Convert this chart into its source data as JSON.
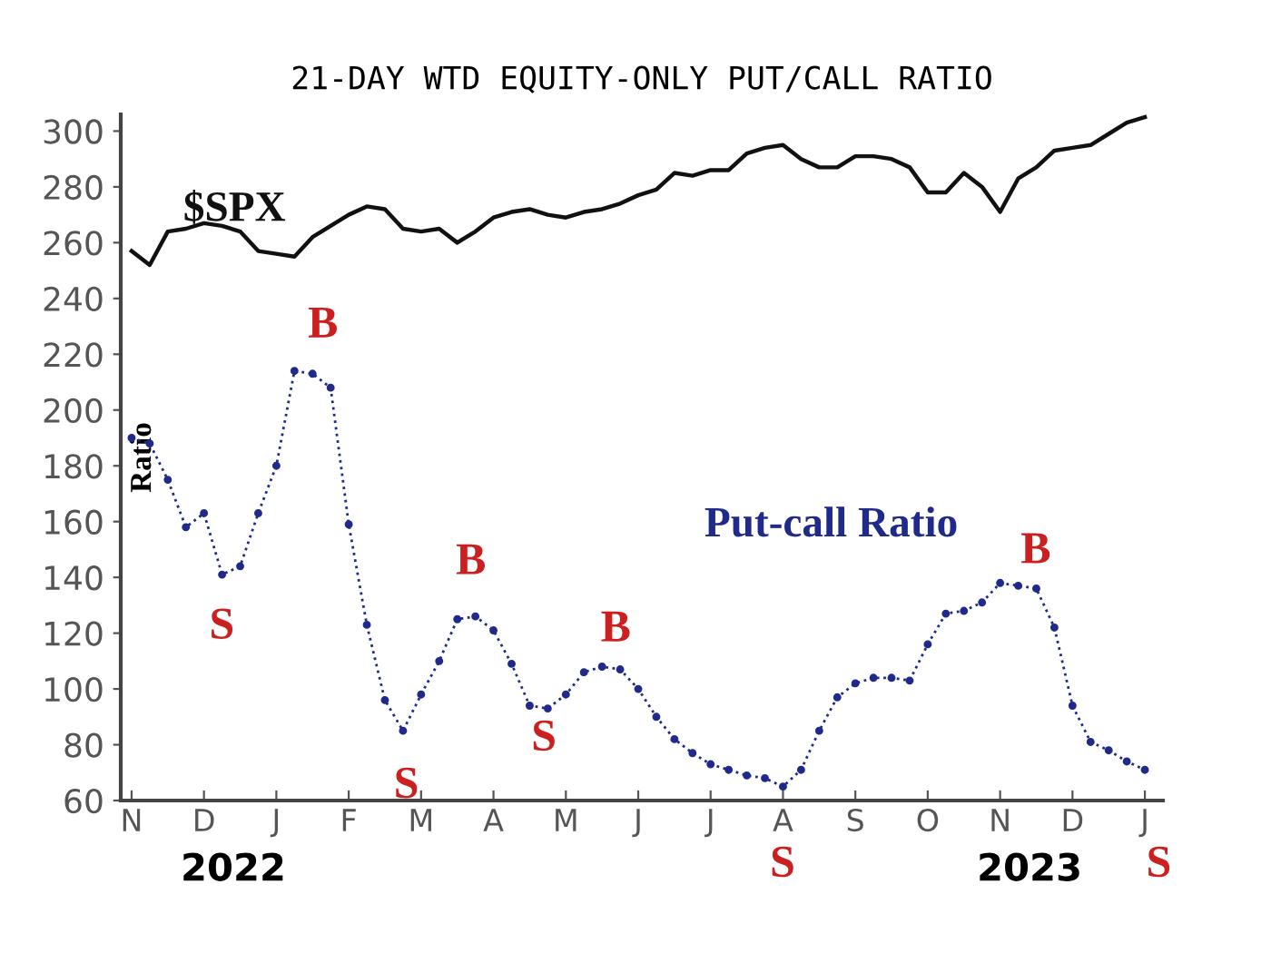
{
  "chart_data": {
    "type": "line",
    "title": "21-DAY WTD EQUITY-ONLY PUT/CALL RATIO",
    "ylabel": "Ratio",
    "categories": [
      "N",
      null,
      null,
      null,
      "D",
      null,
      null,
      null,
      "J",
      null,
      null,
      null,
      "F",
      null,
      null,
      null,
      "M",
      null,
      null,
      null,
      "A",
      null,
      null,
      null,
      "M",
      null,
      null,
      null,
      "J",
      null,
      null,
      null,
      "J",
      null,
      null,
      null,
      "A",
      null,
      null,
      null,
      "S",
      null,
      null,
      null,
      "O",
      null,
      null,
      null,
      "N",
      null,
      null,
      null,
      "D",
      null,
      null,
      null,
      "J"
    ],
    "ylim": [
      60,
      306
    ],
    "yticks": [
      60,
      80,
      100,
      120,
      140,
      160,
      180,
      200,
      220,
      240,
      260,
      280,
      300
    ],
    "grid": false,
    "legend": false,
    "series": [
      {
        "name": "$SPX",
        "color": "#111111",
        "marker": "none",
        "line_style": "solid",
        "values": [
          257,
          252,
          264,
          265,
          267,
          266,
          264,
          257,
          256,
          255,
          262,
          266,
          270,
          273,
          272,
          265,
          264,
          265,
          260,
          264,
          269,
          271,
          272,
          270,
          269,
          271,
          272,
          274,
          277,
          279,
          285,
          284,
          286,
          286,
          292,
          294,
          295,
          290,
          287,
          287,
          291,
          291,
          290,
          287,
          278,
          278,
          285,
          280,
          271,
          283,
          287,
          293,
          294,
          295,
          299,
          303,
          305
        ]
      },
      {
        "name": "Put-call Ratio",
        "color": "#1f2a8a",
        "marker": "circle",
        "line_style": "dotted",
        "values": [
          190,
          188,
          175,
          158,
          163,
          141,
          144,
          163,
          180,
          214,
          213,
          208,
          159,
          123,
          96,
          85,
          98,
          110,
          125,
          126,
          121,
          109,
          94,
          93,
          98,
          106,
          108,
          107,
          100,
          90,
          82,
          77,
          73,
          71,
          69,
          68,
          65,
          71,
          85,
          97,
          102,
          104,
          104,
          103,
          116,
          127,
          128,
          131,
          138,
          137,
          136,
          122,
          94,
          81,
          78,
          74,
          71
        ]
      }
    ],
    "annotations": [
      "B",
      "S",
      "S",
      "B",
      "S",
      "B",
      "S",
      "B",
      "S",
      "2022",
      "2023"
    ]
  }
}
